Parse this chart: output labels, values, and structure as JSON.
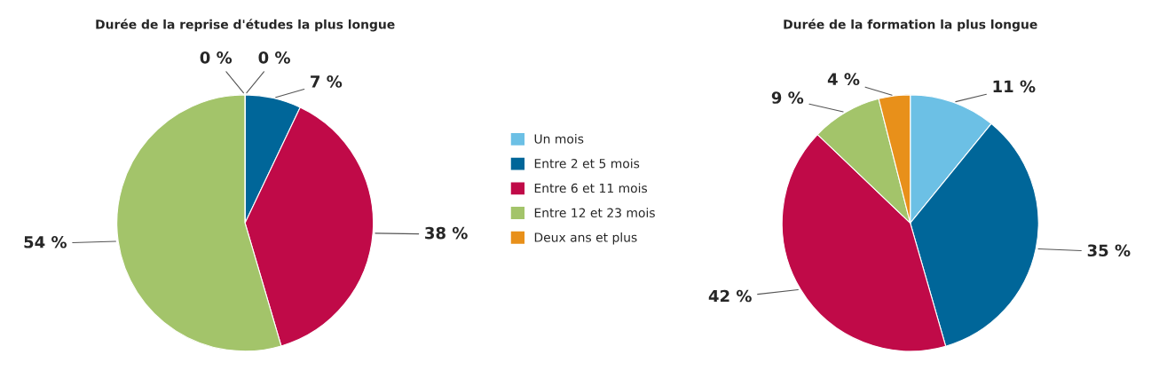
{
  "chart_data": [
    {
      "type": "pie",
      "title": "Durée de la reprise d'études la plus longue",
      "categories": [
        "Un mois",
        "Entre 2 et 5 mois",
        "Entre 6 et 11 mois",
        "Entre 12 et 23 mois",
        "Deux ans et plus"
      ],
      "values": [
        0,
        7,
        38,
        54,
        0
      ],
      "value_labels": [
        "0 %",
        "7 %",
        "38 %",
        "54 %",
        "0 %"
      ],
      "colors": [
        "#6cc0e5",
        "#006699",
        "#c00a48",
        "#a3c46a",
        "#e8901a"
      ],
      "legend": "right"
    },
    {
      "type": "pie",
      "title": "Durée de la formation la plus longue",
      "categories": [
        null,
        null,
        null,
        null,
        null
      ],
      "values": [
        11,
        35,
        42,
        9,
        4
      ],
      "value_labels": [
        "11 %",
        "35 %",
        "42 %",
        "9 %",
        "4 %"
      ],
      "colors": [
        "#6cc0e5",
        "#006699",
        "#c00a48",
        "#a3c46a",
        "#e8901a"
      ]
    }
  ]
}
